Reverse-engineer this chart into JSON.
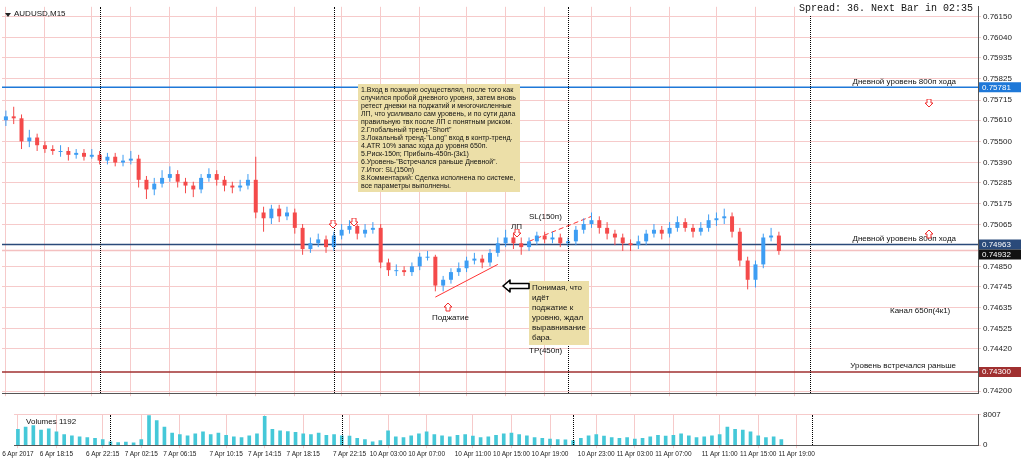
{
  "chart_data": [
    {
      "type": "candlestick",
      "title": "AUDUSD,M15",
      "categories": [
        null,
        null,
        null,
        null,
        null,
        null,
        null,
        null,
        null,
        null,
        null,
        null,
        null,
        null,
        null,
        null,
        null,
        null,
        null,
        null,
        null,
        null,
        null,
        null,
        null,
        null,
        null,
        null,
        null,
        null,
        null,
        null,
        null,
        null,
        null,
        null,
        null,
        null,
        null,
        null,
        null,
        null,
        null,
        null,
        null,
        null,
        null,
        null,
        null,
        null,
        null,
        null,
        null,
        null,
        null,
        null,
        null,
        null,
        null,
        null,
        null,
        null,
        null,
        null,
        null,
        null,
        null,
        null,
        null,
        null,
        null,
        null,
        null,
        null,
        null,
        null,
        null,
        null,
        null,
        null,
        null,
        null,
        null,
        null,
        null,
        null,
        null,
        null,
        null,
        null,
        null,
        null,
        null,
        null,
        null,
        null,
        null,
        null,
        null,
        null,
        null,
        null,
        null,
        null,
        null,
        null,
        null,
        null,
        null,
        null,
        null,
        null,
        null,
        null,
        null,
        null,
        null,
        null,
        null,
        null,
        null,
        null,
        null,
        null,
        null
      ],
      "ohlc": [
        [
          0.7561,
          0.7566,
          0.7558,
          0.7563
        ],
        [
          0.7563,
          0.7568,
          0.7559,
          0.7562
        ],
        [
          0.7562,
          0.7564,
          0.7546,
          0.755
        ],
        [
          0.755,
          0.7556,
          0.7547,
          0.7552
        ],
        [
          0.7552,
          0.7554,
          0.7545,
          0.7548
        ],
        [
          0.7548,
          0.755,
          0.7544,
          0.7546
        ],
        [
          0.7546,
          0.7548,
          0.7543,
          0.7545
        ],
        [
          0.7545,
          0.7548,
          0.7542,
          0.7545
        ],
        [
          0.7545,
          0.7547,
          0.754,
          0.7543
        ],
        [
          0.7543,
          0.7546,
          0.7541,
          0.7544
        ],
        [
          0.7544,
          0.7546,
          0.754,
          0.7542
        ],
        [
          0.7542,
          0.7546,
          0.7541,
          0.7543
        ],
        [
          0.7543,
          0.7545,
          0.7538,
          0.754
        ],
        [
          0.754,
          0.7544,
          0.7538,
          0.7542
        ],
        [
          0.7542,
          0.7544,
          0.7537,
          0.7539
        ],
        [
          0.7539,
          0.7543,
          0.7537,
          0.754
        ],
        [
          0.754,
          0.7545,
          0.7538,
          0.7541
        ],
        [
          0.7541,
          0.7543,
          0.7526,
          0.753
        ],
        [
          0.753,
          0.7532,
          0.752,
          0.7525
        ],
        [
          0.7525,
          0.7531,
          0.7522,
          0.7528
        ],
        [
          0.7528,
          0.7535,
          0.7526,
          0.7531
        ],
        [
          0.7531,
          0.7537,
          0.7529,
          0.7533
        ],
        [
          0.7533,
          0.7535,
          0.7526,
          0.7529
        ],
        [
          0.7529,
          0.7531,
          0.7523,
          0.7527
        ],
        [
          0.7527,
          0.7529,
          0.7521,
          0.7525
        ],
        [
          0.7525,
          0.7533,
          0.7523,
          0.7531
        ],
        [
          0.7531,
          0.7536,
          0.7529,
          0.7533
        ],
        [
          0.7533,
          0.7535,
          0.7527,
          0.753
        ],
        [
          0.753,
          0.7532,
          0.7524,
          0.7527
        ],
        [
          0.7527,
          0.7529,
          0.7523,
          0.7526
        ],
        [
          0.7526,
          0.753,
          0.7524,
          0.7527
        ],
        [
          0.7527,
          0.7533,
          0.7525,
          0.753
        ],
        [
          0.753,
          0.7542,
          0.751,
          0.7513
        ],
        [
          0.7513,
          0.7516,
          0.7503,
          0.751
        ],
        [
          0.751,
          0.7517,
          0.7507,
          0.7515
        ],
        [
          0.7515,
          0.7517,
          0.7508,
          0.7511
        ],
        [
          0.7511,
          0.7516,
          0.7509,
          0.7513
        ],
        [
          0.7513,
          0.7515,
          0.7502,
          0.7505
        ],
        [
          0.7505,
          0.7507,
          0.7491,
          0.7494
        ],
        [
          0.7494,
          0.75,
          0.7492,
          0.7497
        ],
        [
          0.7497,
          0.7502,
          0.7495,
          0.7499
        ],
        [
          0.7499,
          0.7501,
          0.7492,
          0.7495
        ],
        [
          0.7495,
          0.7503,
          0.7493,
          0.7501
        ],
        [
          0.7501,
          0.7507,
          0.7499,
          0.7504
        ],
        [
          0.7504,
          0.7509,
          0.7502,
          0.7506
        ],
        [
          0.7506,
          0.7507,
          0.7499,
          0.7502
        ],
        [
          0.7502,
          0.7507,
          0.75,
          0.7504
        ],
        [
          0.7504,
          0.7508,
          0.7502,
          0.7505
        ],
        [
          0.7505,
          0.7507,
          0.7484,
          0.7487
        ],
        [
          0.7487,
          0.7489,
          0.748,
          0.7483
        ],
        [
          0.7483,
          0.7486,
          0.748,
          0.7483
        ],
        [
          0.7483,
          0.7485,
          0.748,
          0.7482
        ],
        [
          0.7482,
          0.7487,
          0.748,
          0.7485
        ],
        [
          0.7485,
          0.7492,
          0.7483,
          0.749
        ],
        [
          0.749,
          0.7493,
          0.7488,
          0.749
        ],
        [
          0.749,
          0.7491,
          0.7472,
          0.7475
        ],
        [
          0.7475,
          0.748,
          0.7472,
          0.7478
        ],
        [
          0.7478,
          0.7484,
          0.7476,
          0.7482
        ],
        [
          0.7482,
          0.7487,
          0.748,
          0.7484
        ],
        [
          0.7484,
          0.749,
          0.7482,
          0.7488
        ],
        [
          0.7488,
          0.7492,
          0.7486,
          0.7489
        ],
        [
          0.7489,
          0.7491,
          0.7484,
          0.7487
        ],
        [
          0.7487,
          0.7494,
          0.7485,
          0.7492
        ],
        [
          0.7492,
          0.75,
          0.749,
          0.7497
        ],
        [
          0.7497,
          0.7504,
          0.7495,
          0.75
        ],
        [
          0.75,
          0.7502,
          0.7494,
          0.7497
        ],
        [
          0.7497,
          0.75,
          0.7491,
          0.7495
        ],
        [
          0.7495,
          0.75,
          0.7493,
          0.7498
        ],
        [
          0.7498,
          0.7503,
          0.7496,
          0.7501
        ],
        [
          0.7501,
          0.7503,
          0.7497,
          0.7499
        ],
        [
          0.7499,
          0.7503,
          0.7497,
          0.75
        ],
        [
          0.75,
          0.7502,
          0.7495,
          0.7497
        ],
        [
          0.7497,
          0.75,
          0.7495,
          0.7498
        ],
        [
          0.7498,
          0.7506,
          0.7496,
          0.7504
        ],
        [
          0.7504,
          0.751,
          0.7502,
          0.7507
        ],
        [
          0.7507,
          0.7513,
          0.7505,
          0.7509
        ],
        [
          0.7509,
          0.7511,
          0.7502,
          0.7505
        ],
        [
          0.7505,
          0.7508,
          0.7499,
          0.7502
        ],
        [
          0.7502,
          0.7504,
          0.7496,
          0.75
        ],
        [
          0.75,
          0.7502,
          0.7493,
          0.7497
        ],
        [
          0.7497,
          0.7499,
          0.7493,
          0.7496
        ],
        [
          0.7496,
          0.7501,
          0.7494,
          0.7498
        ],
        [
          0.7498,
          0.7504,
          0.7496,
          0.7502
        ],
        [
          0.7502,
          0.7507,
          0.75,
          0.7504
        ],
        [
          0.7504,
          0.7506,
          0.7499,
          0.7502
        ],
        [
          0.7502,
          0.7508,
          0.75,
          0.7505
        ],
        [
          0.7505,
          0.7511,
          0.7503,
          0.7508
        ],
        [
          0.7508,
          0.751,
          0.7503,
          0.7505
        ],
        [
          0.7505,
          0.7507,
          0.75,
          0.7503
        ],
        [
          0.7503,
          0.7508,
          0.7501,
          0.7505
        ],
        [
          0.7505,
          0.7512,
          0.7503,
          0.7509
        ],
        [
          0.7509,
          0.7513,
          0.7506,
          0.751
        ],
        [
          0.751,
          0.7515,
          0.7507,
          0.7511
        ],
        [
          0.7511,
          0.7513,
          0.75,
          0.7503
        ],
        [
          0.7503,
          0.7505,
          0.7485,
          0.7488
        ],
        [
          0.7488,
          0.749,
          0.7473,
          0.7478
        ],
        [
          0.7478,
          0.7488,
          0.7474,
          0.7486
        ],
        [
          0.7486,
          0.7502,
          0.7484,
          0.75
        ],
        [
          0.75,
          0.7505,
          0.7498,
          0.7501
        ],
        [
          0.7501,
          0.7503,
          0.7491,
          0.7493
        ],
        null,
        null,
        null,
        null,
        null,
        null,
        null,
        null,
        null,
        null,
        null,
        null,
        null,
        null,
        null,
        null,
        null,
        null,
        null,
        null,
        null,
        null,
        null,
        null,
        null
      ],
      "colors": [
        "#3d9df3",
        "#f44a4a",
        "#f44a4a",
        "#3d9df3",
        "#f44a4a",
        "#f44a4a",
        "#f44a4a",
        "#3d9df3",
        "#f44a4a",
        "#3d9df3",
        "#f44a4a",
        "#3d9df3",
        "#f44a4a",
        "#3d9df3",
        "#f44a4a",
        "#3d9df3",
        "#3d9df3",
        "#f44a4a",
        "#f44a4a",
        "#3d9df3",
        "#3d9df3",
        "#3d9df3",
        "#f44a4a",
        "#f44a4a",
        "#f44a4a",
        "#3d9df3",
        "#3d9df3",
        "#f44a4a",
        "#f44a4a",
        "#f44a4a",
        "#3d9df3",
        "#3d9df3",
        "#f44a4a",
        "#f44a4a",
        "#3d9df3",
        "#f44a4a",
        "#3d9df3",
        "#f44a4a",
        "#f44a4a",
        "#3d9df3",
        "#3d9df3",
        "#f44a4a",
        "#3d9df3",
        "#3d9df3",
        "#3d9df3",
        "#f44a4a",
        "#3d9df3",
        "#3d9df3",
        "#f44a4a",
        "#f44a4a",
        "#3d9df3",
        "#f44a4a",
        "#3d9df3",
        "#3d9df3",
        "#3d9df3",
        "#f44a4a",
        "#3d9df3",
        "#3d9df3",
        "#3d9df3",
        "#3d9df3",
        "#3d9df3",
        "#f44a4a",
        "#3d9df3",
        "#3d9df3",
        "#3d9df3",
        "#f44a4a",
        "#f44a4a",
        "#3d9df3",
        "#3d9df3",
        "#f44a4a",
        "#3d9df3",
        "#f44a4a",
        "#3d9df3",
        "#3d9df3",
        "#3d9df3",
        "#3d9df3",
        "#f44a4a",
        "#f44a4a",
        "#f44a4a",
        "#f44a4a",
        "#f44a4a",
        "#3d9df3",
        "#3d9df3",
        "#3d9df3",
        "#f44a4a",
        "#3d9df3",
        "#3d9df3",
        "#f44a4a",
        "#f44a4a",
        "#3d9df3",
        "#3d9df3",
        "#3d9df3",
        "#3d9df3",
        "#f44a4a",
        "#f44a4a",
        "#f44a4a",
        "#3d9df3",
        "#3d9df3",
        "#3d9df3",
        "#f44a4a",
        null,
        null,
        null,
        null,
        null,
        null,
        null,
        null,
        null,
        null,
        null,
        null,
        null,
        null,
        null,
        null,
        null,
        null,
        null,
        null,
        null,
        null,
        null,
        null,
        null
      ],
      "series": [
        {
          "type": "line",
          "color": "#ff3333",
          "values": [
            null,
            null,
            null,
            null,
            null,
            null,
            null,
            null,
            null,
            null,
            null,
            null,
            null,
            null,
            null,
            null,
            null,
            null,
            null,
            null,
            null,
            null,
            null,
            null,
            null,
            null,
            null,
            null,
            null,
            null,
            null,
            null,
            null,
            null,
            null,
            null,
            null,
            null,
            null,
            null,
            null,
            null,
            null,
            null,
            null,
            null,
            null,
            null,
            null,
            null,
            null,
            null,
            null,
            null,
            null,
            0.7469,
            null,
            null,
            null,
            null,
            null,
            null,
            null,
            0.7486,
            null,
            null,
            null,
            null,
            null,
            null,
            null,
            null,
            null,
            null,
            null,
            null,
            null,
            null,
            null,
            null,
            null,
            null,
            null,
            null,
            null,
            null,
            null,
            null,
            null,
            null,
            null,
            null,
            null,
            null,
            null,
            null,
            null,
            null,
            null,
            null,
            null,
            null,
            null,
            null,
            null,
            null,
            null,
            null,
            null,
            null,
            null,
            null,
            null,
            null,
            null,
            null,
            null,
            null,
            null,
            null,
            null,
            null,
            null,
            null,
            null
          ]
        },
        {
          "type": "line",
          "color": "#ff3333",
          "line_style": "dashed",
          "values": [
            null,
            null,
            null,
            null,
            null,
            null,
            null,
            null,
            null,
            null,
            null,
            null,
            null,
            null,
            null,
            null,
            null,
            null,
            null,
            null,
            null,
            null,
            null,
            null,
            null,
            null,
            null,
            null,
            null,
            null,
            null,
            null,
            null,
            null,
            null,
            null,
            null,
            null,
            null,
            null,
            null,
            null,
            null,
            null,
            null,
            null,
            null,
            null,
            null,
            null,
            null,
            null,
            null,
            null,
            null,
            null,
            null,
            null,
            null,
            null,
            null,
            null,
            null,
            null,
            null,
            null,
            null,
            0.7498,
            null,
            null,
            null,
            null,
            null,
            null,
            null,
            0.7511,
            null,
            null,
            null,
            null,
            null,
            null,
            null,
            null,
            null,
            null,
            null,
            null,
            null,
            null,
            null,
            null,
            null,
            null,
            null,
            null,
            null,
            null,
            null,
            null,
            null,
            null,
            null,
            null,
            null,
            null,
            null,
            null,
            null,
            null,
            null,
            null,
            null,
            null,
            null,
            null,
            null,
            null,
            null,
            null,
            null,
            null,
            null,
            null,
            null
          ]
        }
      ],
      "marker": "none",
      "ylim": [
        0.7419,
        0.762
      ],
      "yticks": [
        {
          "value": 0.742,
          "label": "0.74200"
        },
        {
          "value": 0.743,
          "label": "0.74300"
        },
        {
          "value": 0.7442,
          "label": "0.74420"
        },
        {
          "value": 0.74525,
          "label": "0.74525"
        },
        {
          "value": 0.74635,
          "label": "0.74635"
        },
        {
          "value": 0.74745,
          "label": "0.74745"
        },
        {
          "value": 0.7485,
          "label": "0.74850"
        },
        {
          "value": 0.74932,
          "label": "0.74932"
        },
        {
          "value": 0.74963,
          "label": "0.74963"
        },
        {
          "value": 0.75065,
          "label": "0.75065"
        },
        {
          "value": 0.75175,
          "label": "0.75175"
        },
        {
          "value": 0.75285,
          "label": "0.75285"
        },
        {
          "value": 0.7539,
          "label": "0.75390"
        },
        {
          "value": 0.755,
          "label": "0.75500"
        },
        {
          "value": 0.7561,
          "label": "0.75610"
        },
        {
          "value": 0.75715,
          "label": "0.75715"
        },
        {
          "value": 0.75781,
          "label": "0.75781"
        },
        {
          "value": 0.75825,
          "label": "0.75825"
        },
        {
          "value": 0.75935,
          "label": "0.75935"
        },
        {
          "value": 0.7604,
          "label": "0.76040"
        },
        {
          "value": 0.7615,
          "label": "0.76150"
        }
      ],
      "grid": true,
      "ref_lines": [
        {
          "axis": "y",
          "value": 0.75781,
          "label": "Дневной уровень 800п хода",
          "color": "#1e78d8"
        },
        {
          "axis": "y",
          "value": 0.74963,
          "label": "Дневной уровень 800п хода",
          "color": "#2a4a7a"
        },
        {
          "axis": "y",
          "value": 0.74932,
          "color": "#f4c0c0"
        },
        {
          "axis": "y",
          "value": 0.743,
          "label": "Уровень встречался раньше",
          "color": "#a03030"
        }
      ],
      "annotations": [
        "Spread: 36. Next Bar in 02:35",
        "1.Вход в позицию осуществлял, после того как случился пробой дневного уровня, затем вновь ретест дневки на поджатий и многочисленные ЛП, что усиливало сам уровень, и по сути дала правильную твх после ЛП с понятным риском.\n2.Глобальный тренд-\"Short\"\n3.Локальный тренд-\"Long\" вход в контр-тренд.\n4.ATR 10% запас хода до уровня 650п.\n5.Риск-150п; Прибыль-450п-(3к1)\n6.Уровень-\"Встречался раньше Дневной\".\n7.Итог: SL(150п)\n8.Комментарий: Сделка исполнена по системе, все параметры выполнены.",
        "Понимая, что идёт поджатие к уровню, ждал выравнивание бара.",
        "Канал 650п(4к1)",
        "Поджатие",
        "ЛП",
        "SL(150п)",
        "TP(450п)"
      ]
    },
    {
      "type": "bar",
      "title": "Volumes 1192",
      "color": "#45c8d8",
      "categories": [
        "6 Apr 2017",
        null,
        null,
        null,
        null,
        "6 Apr 18:15",
        null,
        null,
        null,
        null,
        null,
        "6 Apr 22:15",
        null,
        null,
        null,
        null,
        "7 Apr 02:15",
        null,
        null,
        null,
        null,
        "7 Apr 06:15",
        null,
        null,
        null,
        null,
        null,
        "7 Apr 10:15",
        null,
        null,
        null,
        null,
        "7 Apr 14:15",
        null,
        null,
        null,
        null,
        "7 Apr 18:15",
        null,
        null,
        null,
        null,
        null,
        "7 Apr 22:15",
        null,
        null,
        null,
        null,
        "10 Apr 03:00",
        null,
        null,
        null,
        null,
        "10 Apr 07:00",
        null,
        null,
        null,
        null,
        null,
        "10 Apr 11:00",
        null,
        null,
        null,
        null,
        "10 Apr 15:00",
        null,
        null,
        null,
        null,
        "10 Apr 19:00",
        null,
        null,
        null,
        null,
        null,
        "10 Apr 23:00",
        null,
        null,
        null,
        null,
        "11 Apr 03:00",
        null,
        null,
        null,
        null,
        "11 Apr 07:00",
        null,
        null,
        null,
        null,
        null,
        "11 Apr 11:00",
        null,
        null,
        null,
        null,
        "11 Apr 15:00",
        null,
        null,
        null,
        null,
        "11 Apr 19:00",
        null,
        null,
        null,
        null,
        null,
        null,
        null,
        null,
        null,
        null,
        null,
        null,
        null,
        null,
        null,
        null,
        null,
        null,
        null,
        null,
        null,
        null,
        null
      ],
      "values": [
        4200,
        4800,
        5200,
        4000,
        4300,
        3500,
        2800,
        2500,
        2200,
        2000,
        1800,
        1500,
        900,
        700,
        800,
        600,
        1500,
        7800,
        6500,
        4800,
        3200,
        2800,
        2500,
        3000,
        3500,
        2800,
        3200,
        2600,
        2200,
        2000,
        2500,
        3000,
        7600,
        4200,
        3800,
        3600,
        3400,
        3000,
        2800,
        3200,
        2600,
        2800,
        2500,
        2400,
        1800,
        1500,
        900,
        1200,
        3800,
        2200,
        2000,
        2500,
        3000,
        3500,
        2800,
        2500,
        2200,
        2600,
        2800,
        2400,
        2000,
        2200,
        2600,
        3000,
        3200,
        2800,
        2500,
        2000,
        1800,
        1600,
        1500,
        1400,
        1200,
        1800,
        2500,
        2800,
        2400,
        2000,
        1800,
        2000,
        1600,
        1800,
        2200,
        2600,
        2400,
        2600,
        3000,
        2500,
        2000,
        2200,
        2500,
        2800,
        4800,
        4200,
        4000,
        3500,
        2500,
        2000,
        2200,
        1500,
        null,
        null,
        null,
        null,
        null,
        null,
        null,
        null,
        null,
        null,
        null,
        null,
        null,
        null,
        null,
        null,
        null,
        null,
        null,
        null,
        null,
        null,
        null,
        null,
        null
      ],
      "ylim": [
        0,
        8007
      ],
      "yticks": [
        0,
        8007
      ],
      "grid": true
    }
  ]
}
